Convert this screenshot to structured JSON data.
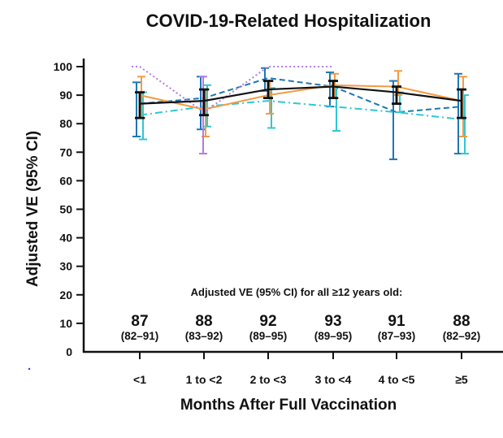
{
  "chart_data": {
    "type": "line",
    "title": "COVID-19-Related Hospitalization",
    "xlabel": "Months After Full Vaccination",
    "ylabel": "Adjusted VE (95% CI)",
    "ylim": [
      0,
      100
    ],
    "yticks": [
      0,
      10,
      20,
      30,
      40,
      50,
      60,
      70,
      80,
      90,
      100
    ],
    "categories": [
      "<1",
      "1 to <2",
      "2 to <3",
      "3 to <4",
      "4 to <5",
      "≥5"
    ],
    "grid": false,
    "legend": "none",
    "series": [
      {
        "name": "dark-blue-dashed",
        "color": "#1f77b4",
        "style": "dashed",
        "values": [
          87,
          89,
          96,
          93,
          84,
          86
        ],
        "ci_low": [
          75.5,
          78,
          91.5,
          86,
          67.5,
          69.5
        ],
        "ci_high": [
          94.5,
          96.5,
          99.5,
          98,
          95,
          97.5
        ]
      },
      {
        "name": "cyan-dash-dot",
        "color": "#2ec7d3",
        "style": "dashdot",
        "values": [
          83,
          86,
          88,
          86,
          84,
          81.5
        ],
        "ci_low": [
          74.5,
          79,
          78.5,
          77.5,
          84,
          69.5
        ],
        "ci_high": [
          91,
          93.5,
          92.5,
          93,
          91,
          90
        ]
      },
      {
        "name": "orange-solid",
        "color": "#f59a42",
        "style": "solid",
        "values": [
          90,
          85,
          90,
          93.5,
          93,
          88
        ],
        "ci_low": [
          82,
          75.5,
          83.5,
          89,
          90,
          75.5
        ],
        "ci_high": [
          96.5,
          92,
          95,
          97.5,
          98.5,
          96.5
        ]
      },
      {
        "name": "purple-dotted",
        "color": "#b47be0",
        "style": "dotted",
        "values": [
          100,
          84,
          100,
          100,
          null,
          null
        ],
        "ci_low": [
          null,
          69.5,
          null,
          null,
          null,
          null
        ],
        "ci_high": [
          null,
          96.5,
          null,
          null,
          null,
          null
        ]
      },
      {
        "name": "all-12-and-older",
        "color": "#111111",
        "style": "solid",
        "values": [
          87,
          88,
          92,
          93,
          91,
          88
        ],
        "ci_low": [
          82,
          83,
          89,
          89,
          87,
          82
        ],
        "ci_high": [
          91,
          92,
          95,
          95,
          93,
          92
        ]
      }
    ],
    "annotation": {
      "heading": "Adjusted VE (95% CI) for all ≥12 years old:",
      "values": [
        "87",
        "88",
        "92",
        "93",
        "91",
        "88"
      ],
      "cis": [
        "(82–91)",
        "(83–92)",
        "(89–95)",
        "(89–95)",
        "(87–93)",
        "(82–92)"
      ]
    }
  }
}
